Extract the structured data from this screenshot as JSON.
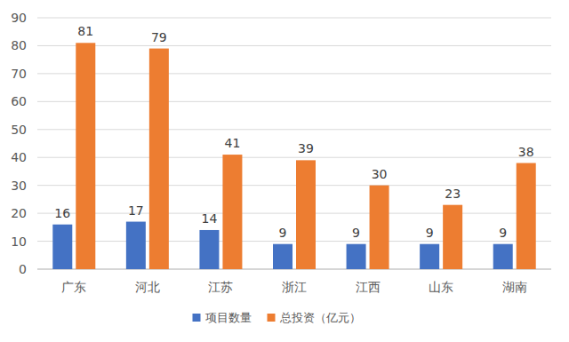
{
  "chart_data": {
    "type": "bar",
    "categories": [
      "广东",
      "河北",
      "江苏",
      "浙江",
      "江西",
      "山东",
      "湖南"
    ],
    "series": [
      {
        "name": "项目数量",
        "color": "#4472c4",
        "values": [
          16,
          17,
          14,
          9,
          9,
          9,
          9
        ]
      },
      {
        "name": "总投资（亿元）",
        "color": "#ed7d31",
        "values": [
          81,
          79,
          41,
          39,
          30,
          23,
          38
        ]
      }
    ],
    "ylim": [
      0,
      90
    ],
    "yticks": [
      0,
      10,
      20,
      30,
      40,
      50,
      60,
      70,
      80,
      90
    ],
    "grid": true,
    "legend": "bottom",
    "data_labels": true
  }
}
